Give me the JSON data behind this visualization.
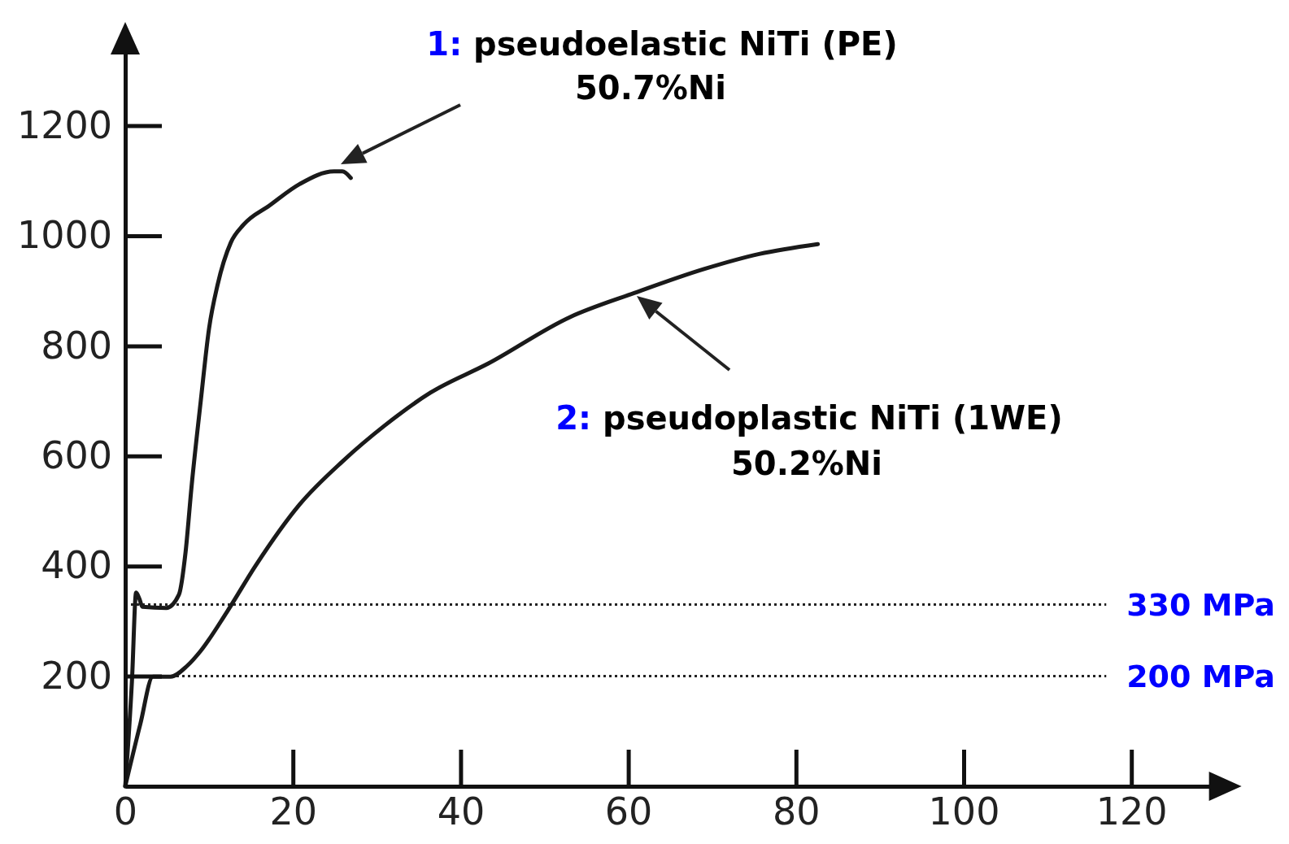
{
  "chart_data": {
    "type": "line",
    "series": [
      {
        "color": "#1a1a1a",
        "x": [
          0,
          0.8,
          1.3,
          1.7,
          2.05,
          4.9,
          6.4,
          7.2,
          7.9,
          9.0,
          10,
          11,
          12.6,
          14.1,
          17.2,
          20.8,
          24.9,
          25.9,
          26.9
        ],
        "values": [
          0,
          191,
          352,
          340,
          326,
          324,
          348,
          426,
          543,
          699,
          832,
          910,
          988,
          1020,
          1055,
          1094,
          1117,
          1117,
          1105
        ]
      },
      {
        "color": "#1a1a1a",
        "x": [
          0,
          1.8,
          3.3,
          5.4,
          7.4,
          9,
          12.1,
          15.6,
          20.8,
          25.9,
          31,
          36.4,
          43.3,
          53,
          60.7,
          69.1,
          75.6,
          82.6
        ],
        "values": [
          0,
          113,
          199,
          199,
          219,
          246,
          316,
          402,
          512,
          590,
          656,
          715,
          768,
          852,
          896,
          940,
          967,
          985
        ]
      }
    ],
    "annotations": [
      "1: pseudoelastic NiTi (PE)",
      "50.7%Ni",
      "2: pseudoplastic NiTi (1WE)",
      "50.2%Ni"
    ],
    "ref_lines": [
      {
        "axis": "y",
        "value": 330,
        "label": "330 MPa",
        "line_style": "dotted"
      },
      {
        "axis": "y",
        "value": 200,
        "label": "200 MPa",
        "line_style": "dotted"
      }
    ],
    "xlim": [
      0,
      131
    ],
    "xticks": [
      0,
      20,
      40,
      60,
      80,
      100,
      120
    ],
    "ylim": [
      0,
      1356
    ],
    "yticks": [
      200,
      400,
      600,
      800,
      1000,
      1200
    ],
    "grid": false,
    "marker": "none",
    "line_style": "solid"
  }
}
